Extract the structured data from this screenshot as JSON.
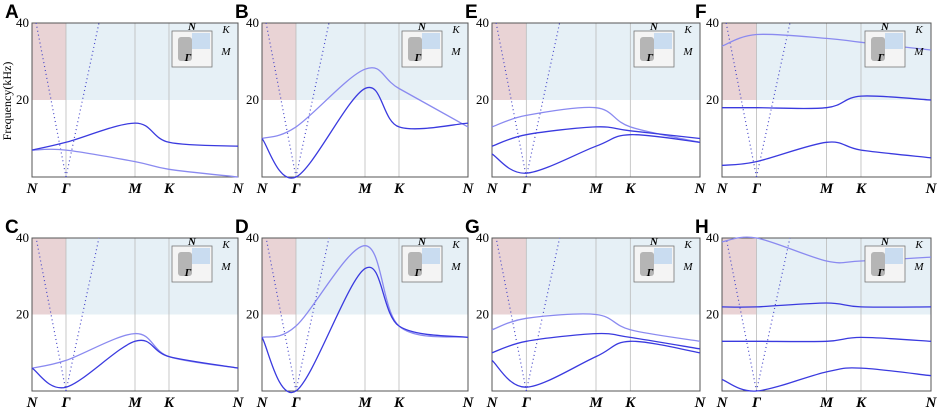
{
  "figure": {
    "ylabel": "Frequency(kHz)",
    "colors": {
      "band": "#3a3adf",
      "band_light": "#8a8af0",
      "line_dot": "#4747c9",
      "pink_region": "#e9d3d5",
      "blue_region": "#e6f0f6",
      "axis": "#555555",
      "grid": "#bbbbbb"
    }
  },
  "chart_data": [
    {
      "panel": "A",
      "type": "line",
      "ylim": [
        0,
        40
      ],
      "yticks": [
        "20",
        "40"
      ],
      "xticks": [
        "N",
        "Γ",
        "M",
        "K",
        "N"
      ],
      "inset_labels": [
        "N",
        "K",
        "M",
        "Γ"
      ],
      "legend": "top-right",
      "series": [
        {
          "x": [
            0,
            1,
            2,
            3,
            4
          ],
          "y": [
            7,
            7,
            4,
            2,
            0
          ]
        },
        {
          "x": [
            0,
            1,
            2,
            3,
            4
          ],
          "y": [
            7,
            9,
            14,
            9,
            8
          ]
        }
      ]
    },
    {
      "panel": "B",
      "type": "line",
      "ylim": [
        0,
        40
      ],
      "yticks": [
        "20",
        "40"
      ],
      "xticks": [
        "N",
        "Γ",
        "M",
        "K",
        "N"
      ],
      "inset_labels": [
        "N",
        "K",
        "M",
        "Γ"
      ],
      "legend": "top-right",
      "series": [
        {
          "x": [
            0,
            1,
            2,
            3,
            4
          ],
          "y": [
            10,
            13,
            28,
            23,
            13
          ]
        },
        {
          "x": [
            0,
            1,
            2,
            3,
            4
          ],
          "y": [
            10,
            0,
            23,
            13,
            14
          ]
        }
      ]
    },
    {
      "panel": "C",
      "type": "line",
      "ylim": [
        0,
        40
      ],
      "yticks": [
        "20",
        "40"
      ],
      "xticks": [
        "N",
        "Γ",
        "M",
        "K",
        "N"
      ],
      "inset_labels": [
        "N",
        "K",
        "M",
        "Γ"
      ],
      "legend": "top-right",
      "series": [
        {
          "x": [
            0,
            1,
            2,
            3,
            4
          ],
          "y": [
            6,
            8,
            15,
            9,
            6
          ]
        },
        {
          "x": [
            0,
            1,
            2,
            3,
            4
          ],
          "y": [
            6,
            1,
            13,
            9,
            6
          ]
        }
      ]
    },
    {
      "panel": "D",
      "type": "line",
      "ylim": [
        0,
        40
      ],
      "yticks": [
        "20",
        "40"
      ],
      "xticks": [
        "N",
        "Γ",
        "M",
        "K",
        "N"
      ],
      "inset_labels": [
        "N",
        "K",
        "M",
        "Γ"
      ],
      "legend": "top-right",
      "series": [
        {
          "x": [
            0,
            1,
            2,
            3,
            4
          ],
          "y": [
            14,
            17,
            38,
            17,
            14
          ]
        },
        {
          "x": [
            0,
            1,
            2,
            3,
            4
          ],
          "y": [
            14,
            0,
            32,
            17,
            14
          ]
        }
      ]
    },
    {
      "panel": "E",
      "type": "line",
      "ylim": [
        0,
        40
      ],
      "yticks": [
        "20",
        "40"
      ],
      "xticks": [
        "N",
        "Γ",
        "M",
        "K",
        "N"
      ],
      "inset_labels": [
        "N",
        "K",
        "M",
        "Γ"
      ],
      "legend": "top-right",
      "series": [
        {
          "x": [
            0,
            1,
            2,
            3,
            4
          ],
          "y": [
            13,
            16,
            18,
            13,
            9
          ]
        },
        {
          "x": [
            0,
            1,
            2,
            3,
            4
          ],
          "y": [
            8,
            11,
            13,
            12,
            10
          ]
        },
        {
          "x": [
            0,
            1,
            2,
            3,
            4
          ],
          "y": [
            6,
            1,
            8,
            11,
            9
          ]
        }
      ]
    },
    {
      "panel": "F",
      "type": "line",
      "ylim": [
        0,
        40
      ],
      "yticks": [
        "20",
        "40"
      ],
      "xticks": [
        "N",
        "Γ",
        "M",
        "K",
        "N"
      ],
      "inset_labels": [
        "N",
        "K",
        "M",
        "Γ"
      ],
      "legend": "top-right",
      "series": [
        {
          "x": [
            0,
            1,
            2,
            3,
            4
          ],
          "y": [
            34,
            37,
            36,
            35,
            33
          ]
        },
        {
          "x": [
            0,
            1,
            2,
            3,
            4
          ],
          "y": [
            18,
            18,
            18,
            21,
            20
          ]
        },
        {
          "x": [
            0,
            1,
            2,
            3,
            4
          ],
          "y": [
            3,
            4,
            9,
            7,
            5
          ]
        }
      ]
    },
    {
      "panel": "G",
      "type": "line",
      "ylim": [
        0,
        40
      ],
      "yticks": [
        "20",
        "40"
      ],
      "xticks": [
        "N",
        "Γ",
        "M",
        "K",
        "N"
      ],
      "inset_labels": [
        "N",
        "K",
        "M",
        "Γ"
      ],
      "legend": "top-right",
      "series": [
        {
          "x": [
            0,
            1,
            2,
            3,
            4
          ],
          "y": [
            16,
            19,
            20,
            16,
            13
          ]
        },
        {
          "x": [
            0,
            1,
            2,
            3,
            4
          ],
          "y": [
            10,
            13,
            15,
            14,
            11
          ]
        },
        {
          "x": [
            0,
            1,
            2,
            3,
            4
          ],
          "y": [
            8,
            1,
            9,
            13,
            10
          ]
        }
      ]
    },
    {
      "panel": "H",
      "type": "line",
      "ylim": [
        0,
        40
      ],
      "yticks": [
        "20",
        "40"
      ],
      "xticks": [
        "N",
        "Γ",
        "M",
        "K",
        "N"
      ],
      "inset_labels": [
        "N",
        "K",
        "M",
        "Γ"
      ],
      "legend": "top-right",
      "series": [
        {
          "x": [
            0,
            1,
            2,
            3,
            4
          ],
          "y": [
            39,
            40,
            34,
            34,
            35
          ]
        },
        {
          "x": [
            0,
            1,
            2,
            3,
            4
          ],
          "y": [
            22,
            22,
            23,
            22,
            22
          ]
        },
        {
          "x": [
            0,
            1,
            2,
            3,
            4
          ],
          "y": [
            13,
            13,
            13,
            14,
            13
          ]
        },
        {
          "x": [
            0,
            1,
            2,
            3,
            4
          ],
          "y": [
            3,
            0,
            5,
            6,
            4
          ]
        }
      ]
    }
  ]
}
